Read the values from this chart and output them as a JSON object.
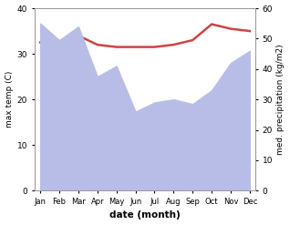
{
  "months": [
    "Jan",
    "Feb",
    "Mar",
    "Apr",
    "May",
    "Jun",
    "Jul",
    "Aug",
    "Sep",
    "Oct",
    "Nov",
    "Dec"
  ],
  "temp_max": [
    32.5,
    32.0,
    34.0,
    32.0,
    31.5,
    31.5,
    31.5,
    32.0,
    33.0,
    36.5,
    35.5,
    35.0
  ],
  "precip": [
    55.0,
    49.5,
    54.0,
    37.5,
    41.0,
    26.0,
    29.0,
    30.0,
    28.5,
    33.0,
    42.0,
    46.0
  ],
  "temp_color": "#cc4444",
  "precip_fill_color": "#b8bde8",
  "ylim_temp": [
    0,
    40
  ],
  "ylim_precip": [
    0,
    60
  ],
  "xlabel": "date (month)",
  "ylabel_left": "max temp (C)",
  "ylabel_right": "med. precipitation (kg/m2)",
  "bg_color": "#ffffff"
}
